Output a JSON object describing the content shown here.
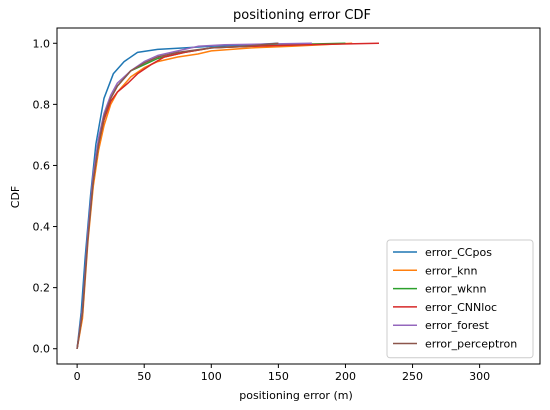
{
  "chart_data": {
    "type": "line",
    "title": "positioning error CDF",
    "xlabel": "positioning error (m)",
    "ylabel": "CDF",
    "xlim": [
      -15,
      345
    ],
    "ylim": [
      -0.05,
      1.05
    ],
    "xticks": [
      0,
      50,
      100,
      150,
      200,
      250,
      300
    ],
    "yticks": [
      0.0,
      0.2,
      0.4,
      0.6,
      0.8,
      1.0
    ],
    "xtick_labels": [
      "0",
      "50",
      "100",
      "150",
      "200",
      "250",
      "300"
    ],
    "ytick_labels": [
      "0.0",
      "0.2",
      "0.4",
      "0.6",
      "0.8",
      "1.0"
    ],
    "grid": false,
    "legend_position": "lower-right",
    "series": [
      {
        "name": "error_CCpos",
        "color": "#1f77b4",
        "points": [
          [
            0,
            0.0
          ],
          [
            3,
            0.12
          ],
          [
            6,
            0.3
          ],
          [
            10,
            0.5
          ],
          [
            14,
            0.67
          ],
          [
            20,
            0.82
          ],
          [
            27,
            0.9
          ],
          [
            35,
            0.94
          ],
          [
            45,
            0.97
          ],
          [
            60,
            0.98
          ],
          [
            80,
            0.985
          ],
          [
            100,
            0.99
          ],
          [
            130,
            0.995
          ],
          [
            150,
            1.0
          ]
        ]
      },
      {
        "name": "error_knn",
        "color": "#ff7f0e",
        "points": [
          [
            0,
            0.0
          ],
          [
            4,
            0.1
          ],
          [
            8,
            0.35
          ],
          [
            12,
            0.53
          ],
          [
            16,
            0.65
          ],
          [
            20,
            0.73
          ],
          [
            25,
            0.8
          ],
          [
            30,
            0.84
          ],
          [
            40,
            0.89
          ],
          [
            50,
            0.92
          ],
          [
            60,
            0.94
          ],
          [
            75,
            0.955
          ],
          [
            90,
            0.965
          ],
          [
            100,
            0.975
          ],
          [
            130,
            0.985
          ],
          [
            160,
            0.99
          ],
          [
            205,
            1.0
          ]
        ]
      },
      {
        "name": "error_wknn",
        "color": "#2ca02c",
        "points": [
          [
            0,
            0.0
          ],
          [
            4,
            0.12
          ],
          [
            8,
            0.37
          ],
          [
            12,
            0.55
          ],
          [
            16,
            0.67
          ],
          [
            20,
            0.75
          ],
          [
            25,
            0.82
          ],
          [
            30,
            0.86
          ],
          [
            40,
            0.91
          ],
          [
            50,
            0.93
          ],
          [
            60,
            0.95
          ],
          [
            80,
            0.97
          ],
          [
            100,
            0.985
          ],
          [
            130,
            0.99
          ],
          [
            150,
            0.995
          ],
          [
            200,
            1.0
          ]
        ]
      },
      {
        "name": "error_CNNloc",
        "color": "#d62728",
        "points": [
          [
            0,
            0.0
          ],
          [
            4,
            0.12
          ],
          [
            8,
            0.37
          ],
          [
            12,
            0.55
          ],
          [
            16,
            0.67
          ],
          [
            20,
            0.75
          ],
          [
            25,
            0.81
          ],
          [
            30,
            0.84
          ],
          [
            38,
            0.87
          ],
          [
            45,
            0.9
          ],
          [
            55,
            0.93
          ],
          [
            65,
            0.955
          ],
          [
            80,
            0.97
          ],
          [
            100,
            0.985
          ],
          [
            130,
            0.99
          ],
          [
            170,
            0.995
          ],
          [
            225,
            1.0
          ]
        ]
      },
      {
        "name": "error_forest",
        "color": "#9467bd",
        "points": [
          [
            0,
            0.0
          ],
          [
            4,
            0.13
          ],
          [
            8,
            0.38
          ],
          [
            12,
            0.57
          ],
          [
            16,
            0.69
          ],
          [
            20,
            0.77
          ],
          [
            25,
            0.83
          ],
          [
            30,
            0.87
          ],
          [
            40,
            0.91
          ],
          [
            50,
            0.94
          ],
          [
            60,
            0.96
          ],
          [
            75,
            0.975
          ],
          [
            90,
            0.99
          ],
          [
            110,
            0.995
          ],
          [
            175,
            1.0
          ]
        ]
      },
      {
        "name": "error_perceptron",
        "color": "#8c564b",
        "points": [
          [
            0,
            0.0
          ],
          [
            4,
            0.12
          ],
          [
            8,
            0.36
          ],
          [
            12,
            0.55
          ],
          [
            16,
            0.67
          ],
          [
            20,
            0.76
          ],
          [
            25,
            0.82
          ],
          [
            30,
            0.86
          ],
          [
            40,
            0.91
          ],
          [
            50,
            0.935
          ],
          [
            60,
            0.955
          ],
          [
            75,
            0.97
          ],
          [
            100,
            0.985
          ],
          [
            125,
            0.99
          ],
          [
            150,
            1.0
          ]
        ]
      }
    ]
  }
}
